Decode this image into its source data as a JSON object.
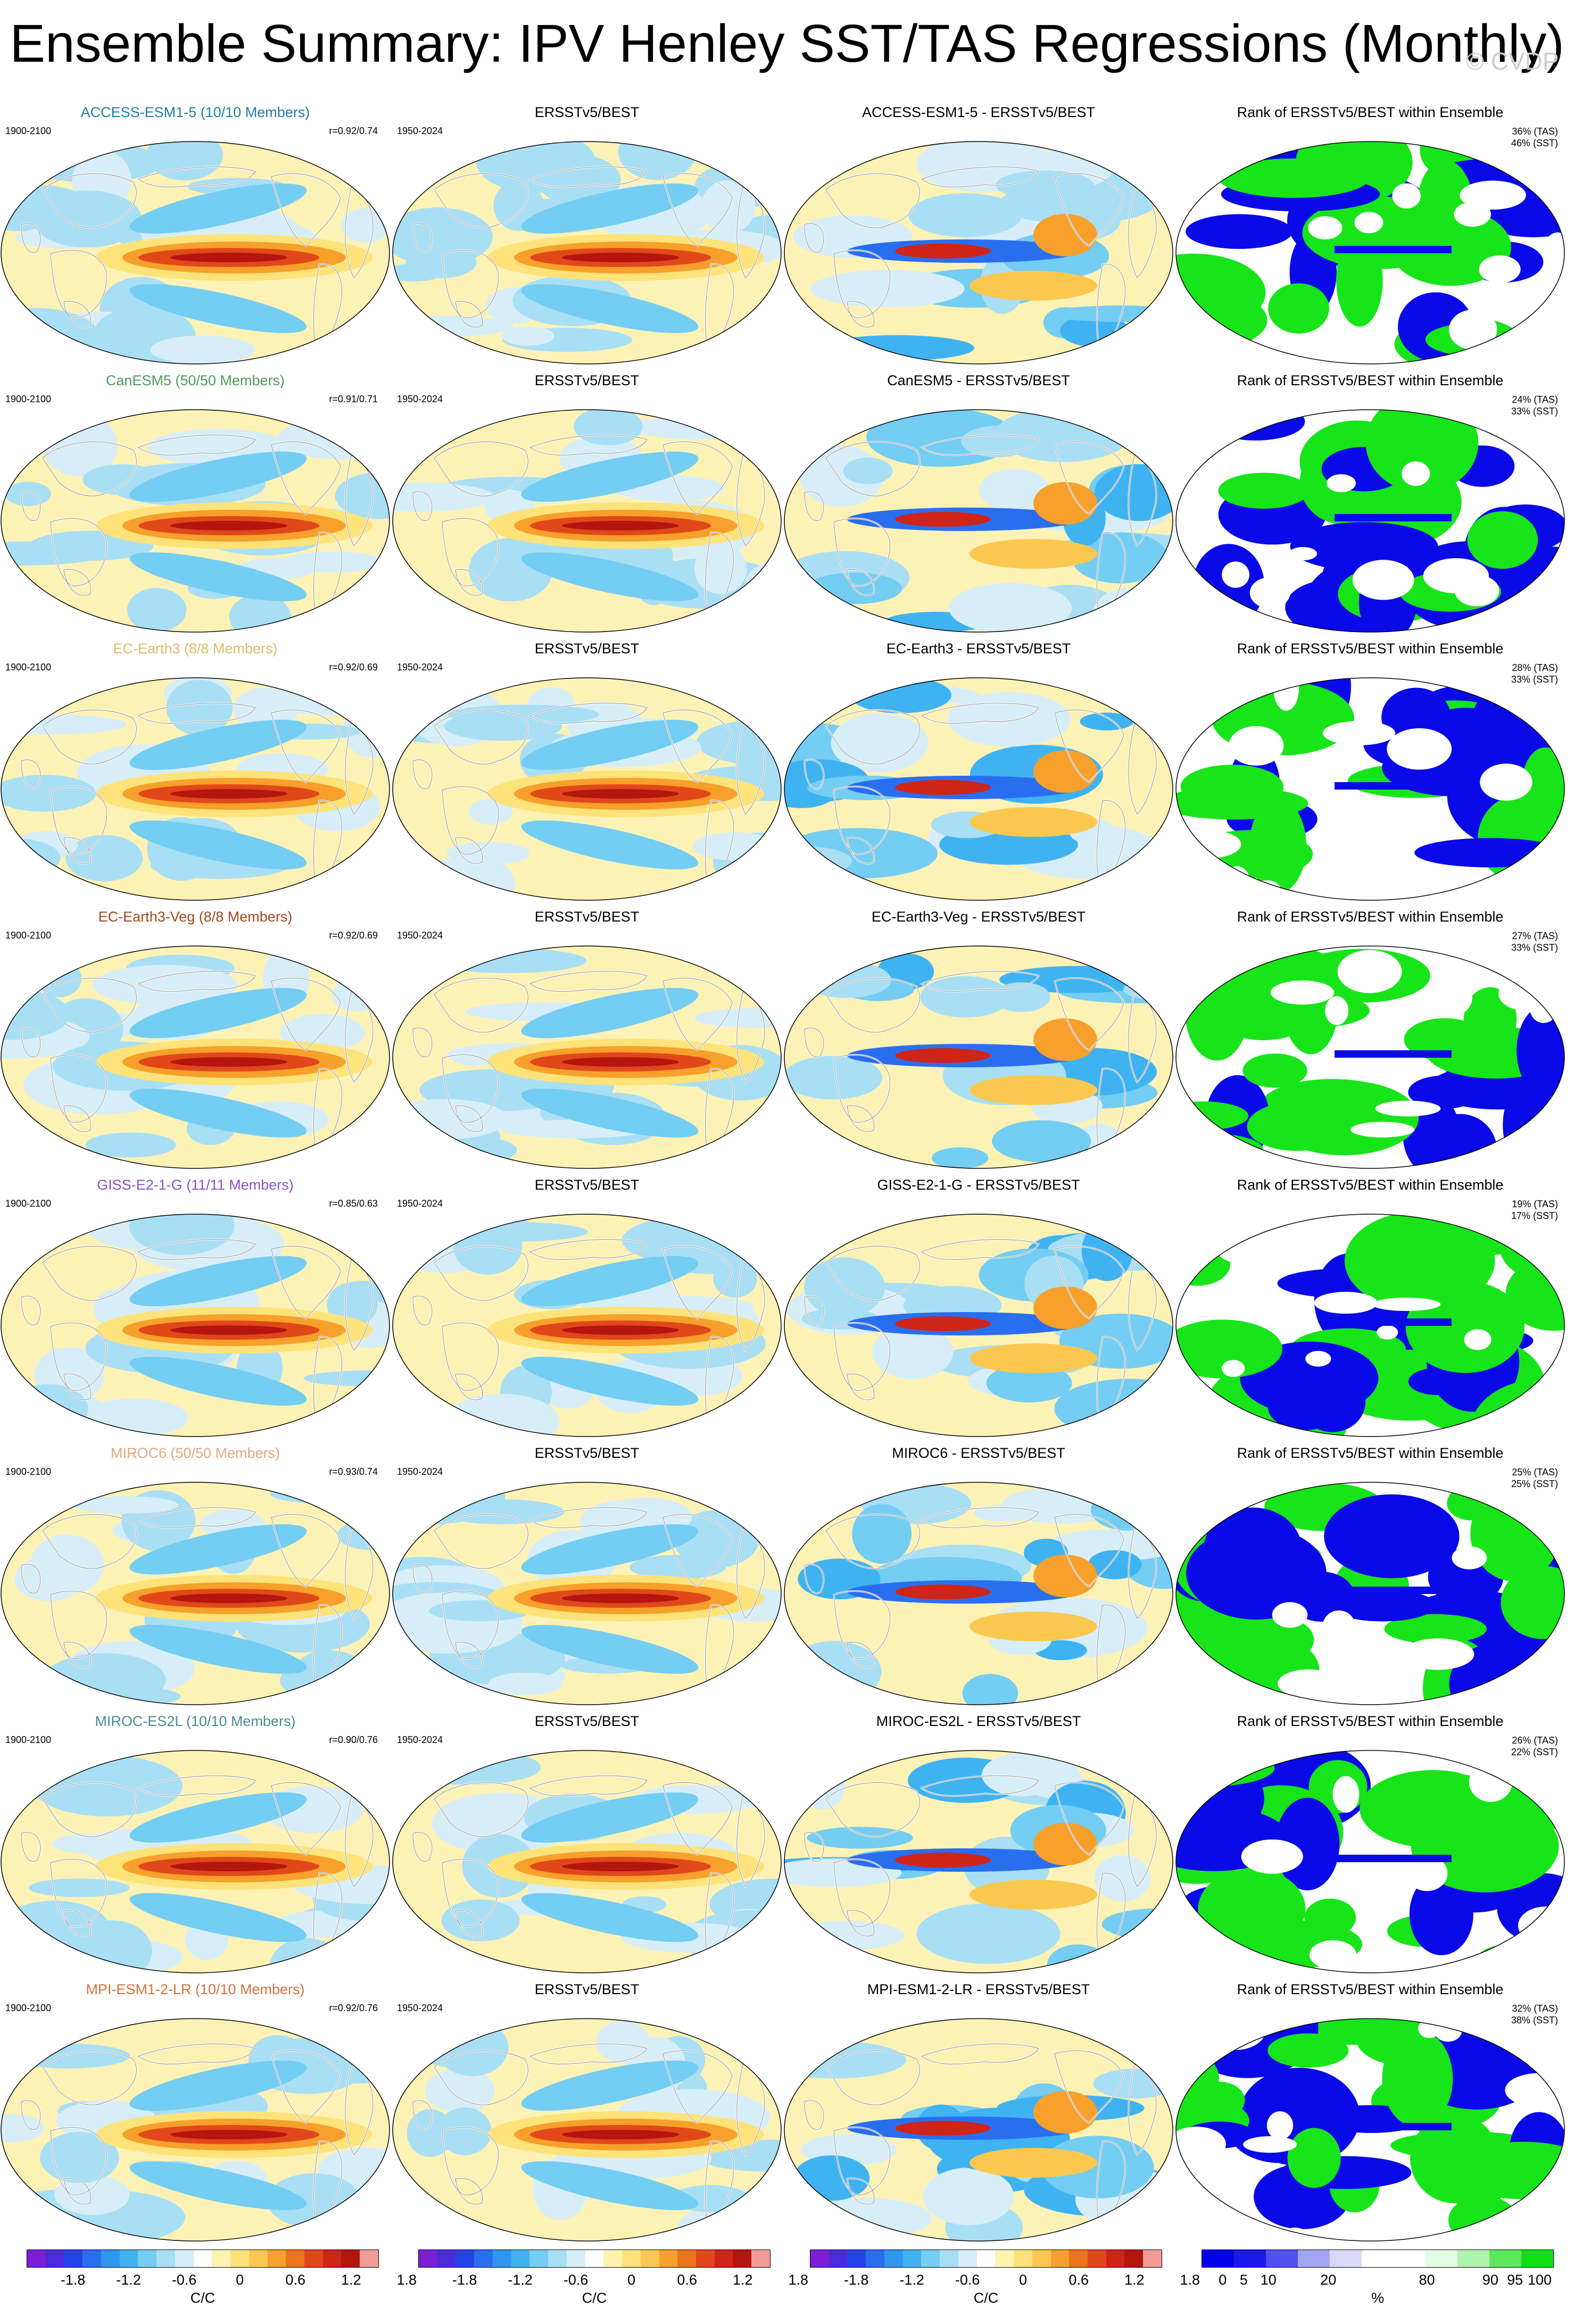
{
  "title": "Ensemble Summary: IPV Henley SST/TAS Regressions (Monthly)",
  "watermark": "© CVDP",
  "colors": {
    "ocean_base": "#fdf2b6",
    "land": "#ffffff",
    "regression_scale": [
      "#7a1fd6",
      "#4b2ad9",
      "#2643e8",
      "#2a6ef0",
      "#2f96f2",
      "#3fb3f2",
      "#74cdf2",
      "#a9dff5",
      "#d7eef8",
      "#ffffff",
      "#fff3b0",
      "#fde37a",
      "#fbc84f",
      "#f7a02b",
      "#ee7419",
      "#e0481a",
      "#cf2418",
      "#b5150f",
      "#f29a96"
    ],
    "rank_scale": [
      "#0000e8",
      "#1a1ae8",
      "#5050f0",
      "#a4a4f5",
      "#d8d8fa",
      "#ffffff",
      "#ffffff",
      "#e4fbe4",
      "#aef3ae",
      "#5ae85a",
      "#12e012"
    ],
    "rank_blue": "#0a0ae8",
    "rank_green": "#18e41a"
  },
  "rows": [
    {
      "model_title": "ACCESS-ESM1-5 (10/10 Members)",
      "title_color": "#1f7ea0",
      "model_years": "1900-2100",
      "corr": "r=0.92/0.74",
      "obs_title": "ERSSTv5/BEST",
      "obs_years": "1950-2024",
      "diff_title": "ACCESS-ESM1-5 - ERSSTv5/BEST",
      "rank_title": "Rank of ERSSTv5/BEST within Ensemble",
      "rank_tas": "36% (TAS)",
      "rank_sst": "46% (SST)"
    },
    {
      "model_title": "CanESM5 (50/50 Members)",
      "title_color": "#4f9a57",
      "model_years": "1900-2100",
      "corr": "r=0.91/0.71",
      "obs_title": "ERSSTv5/BEST",
      "obs_years": "1950-2024",
      "diff_title": "CanESM5 - ERSSTv5/BEST",
      "rank_title": "Rank of ERSSTv5/BEST within Ensemble",
      "rank_tas": "24% (TAS)",
      "rank_sst": "33% (SST)"
    },
    {
      "model_title": "EC-Earth3 (8/8 Members)",
      "title_color": "#d8bd6a",
      "model_years": "1900-2100",
      "corr": "r=0.92/0.69",
      "obs_title": "ERSSTv5/BEST",
      "obs_years": "1950-2024",
      "diff_title": "EC-Earth3 - ERSSTv5/BEST",
      "rank_title": "Rank of ERSSTv5/BEST within Ensemble",
      "rank_tas": "28% (TAS)",
      "rank_sst": "33% (SST)"
    },
    {
      "model_title": "EC-Earth3-Veg (8/8 Members)",
      "title_color": "#a1471f",
      "model_years": "1900-2100",
      "corr": "r=0.92/0.69",
      "obs_title": "ERSSTv5/BEST",
      "obs_years": "1950-2024",
      "diff_title": "EC-Earth3-Veg - ERSSTv5/BEST",
      "rank_title": "Rank of ERSSTv5/BEST within Ensemble",
      "rank_tas": "27% (TAS)",
      "rank_sst": "33% (SST)"
    },
    {
      "model_title": "GISS-E2-1-G (11/11 Members)",
      "title_color": "#8a52c6",
      "model_years": "1900-2100",
      "corr": "r=0.85/0.63",
      "obs_title": "ERSSTv5/BEST",
      "obs_years": "1950-2024",
      "diff_title": "GISS-E2-1-G - ERSSTv5/BEST",
      "rank_title": "Rank of ERSSTv5/BEST within Ensemble",
      "rank_tas": "19% (TAS)",
      "rank_sst": "17% (SST)"
    },
    {
      "model_title": "MIROC6 (50/50 Members)",
      "title_color": "#e0a87c",
      "model_years": "1900-2100",
      "corr": "r=0.93/0.74",
      "obs_title": "ERSSTv5/BEST",
      "obs_years": "1950-2024",
      "diff_title": "MIROC6 - ERSSTv5/BEST",
      "rank_title": "Rank of ERSSTv5/BEST within Ensemble",
      "rank_tas": "25% (TAS)",
      "rank_sst": "25% (SST)"
    },
    {
      "model_title": "MIROC-ES2L (10/10 Members)",
      "title_color": "#4a8a94",
      "model_years": "1900-2100",
      "corr": "r=0.90/0.76",
      "obs_title": "ERSSTv5/BEST",
      "obs_years": "1950-2024",
      "diff_title": "MIROC-ES2L - ERSSTv5/BEST",
      "rank_title": "Rank of ERSSTv5/BEST within Ensemble",
      "rank_tas": "26% (TAS)",
      "rank_sst": "22% (SST)"
    },
    {
      "model_title": "MPI-ESM1-2-LR (10/10 Members)",
      "title_color": "#d6713e",
      "model_years": "1900-2100",
      "corr": "r=0.92/0.76",
      "obs_title": "ERSSTv5/BEST",
      "obs_years": "1950-2024",
      "diff_title": "MPI-ESM1-2-LR - ERSSTv5/BEST",
      "rank_title": "Rank of ERSSTv5/BEST within Ensemble",
      "rank_tas": "32% (TAS)",
      "rank_sst": "38% (SST)"
    }
  ],
  "colorbars": [
    {
      "kind": "regression",
      "ticks": [
        "-1.8",
        "-1.2",
        "-0.6",
        "0",
        "0.6",
        "1.2",
        "1.8"
      ],
      "unit": "C/C"
    },
    {
      "kind": "regression",
      "ticks": [
        "-1.8",
        "-1.2",
        "-0.6",
        "0",
        "0.6",
        "1.2",
        "1.8"
      ],
      "unit": "C/C"
    },
    {
      "kind": "regression",
      "ticks": [
        "-1.8",
        "-1.2",
        "-0.6",
        "0",
        "0.6",
        "1.2",
        "1.8"
      ],
      "unit": "C/C"
    },
    {
      "kind": "rank",
      "ticks": [
        "0",
        "5",
        "10",
        "20",
        "80",
        "90",
        "95",
        "100"
      ],
      "unit": "%"
    }
  ]
}
